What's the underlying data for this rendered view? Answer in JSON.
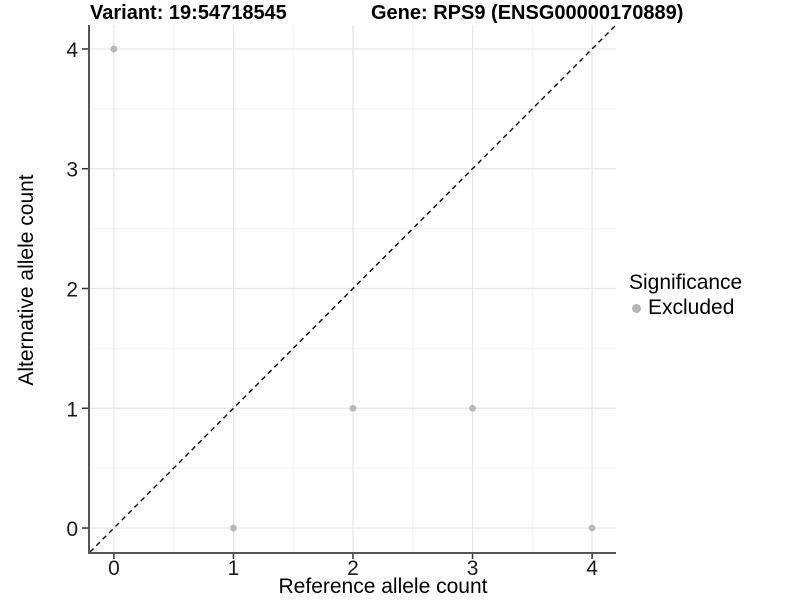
{
  "chart_data": {
    "type": "scatter",
    "titles": {
      "variant": "Variant: 19:54718545",
      "gene": "Gene: RPS9 (ENSG00000170889)"
    },
    "xlabel": "Reference allele count",
    "ylabel": "Alternative allele count",
    "xlim": [
      -0.2,
      4.2
    ],
    "ylim": [
      -0.2,
      4.2
    ],
    "x_ticks": [
      0,
      1,
      2,
      3,
      4
    ],
    "y_ticks": [
      0,
      1,
      2,
      3,
      4
    ],
    "grid": {
      "major": true,
      "minor": true
    },
    "identity_line": {
      "style": "dashed",
      "slope": 1,
      "intercept": 0,
      "color": "#000000"
    },
    "series": [
      {
        "name": "Excluded",
        "color": "#b8b8b8",
        "points": [
          [
            0,
            4
          ],
          [
            1,
            0
          ],
          [
            2,
            1
          ],
          [
            3,
            1
          ],
          [
            4,
            0
          ]
        ]
      }
    ],
    "legend": {
      "title": "Significance",
      "position": "right",
      "entries": [
        {
          "label": "Excluded",
          "color": "#b5b5b5"
        }
      ]
    }
  },
  "style": {
    "background": "#ffffff",
    "grid_major": "#e6e6e6",
    "grid_minor": "#f2f2f2",
    "axis_line": "#555555",
    "tick": "#333333",
    "tick_label": "#1a1a1a"
  }
}
